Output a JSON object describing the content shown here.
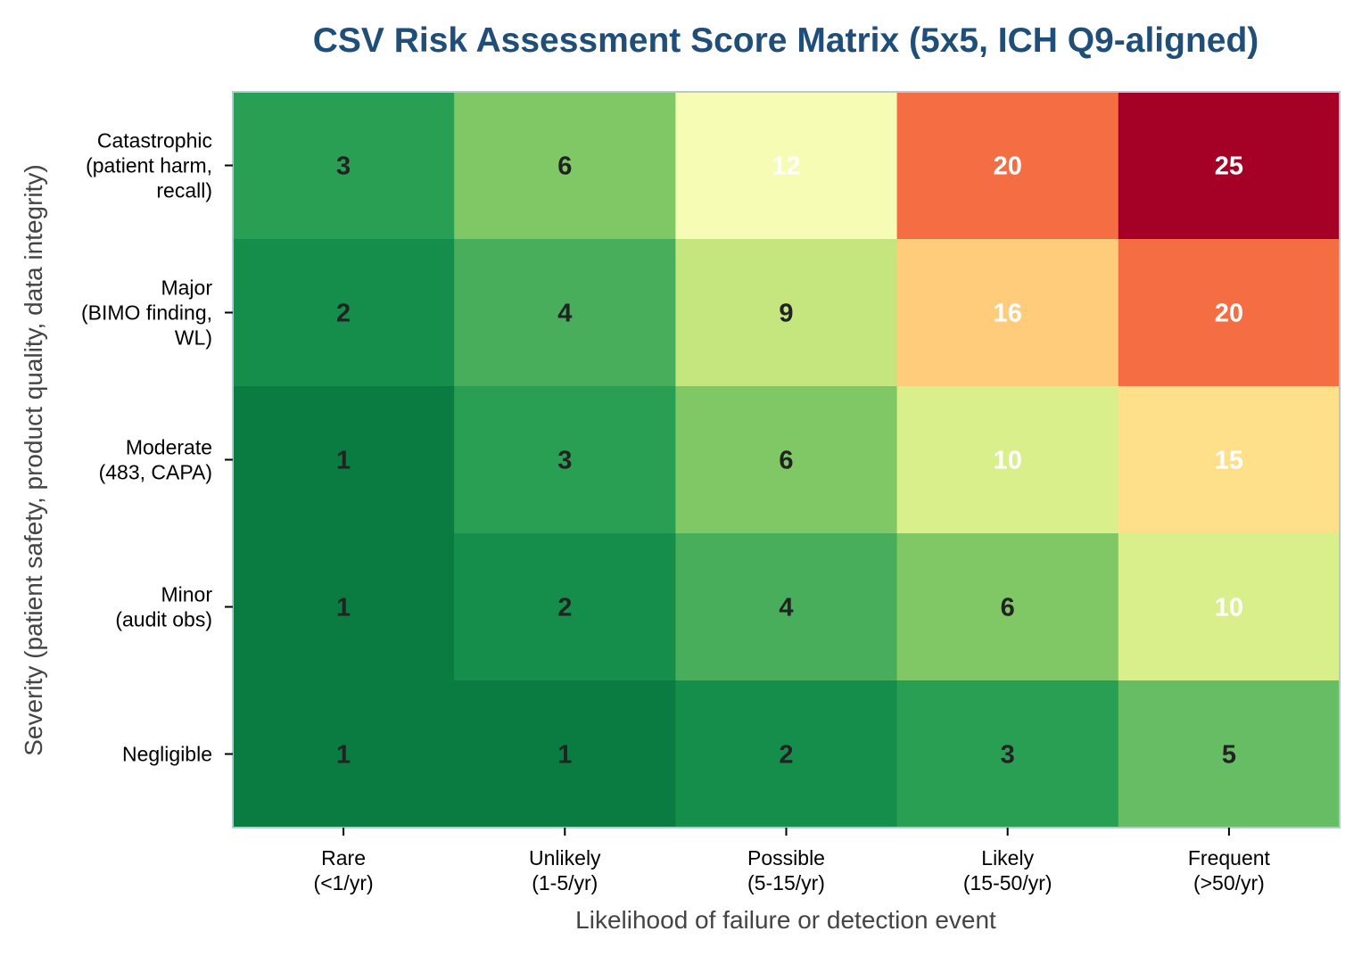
{
  "chart_data": {
    "type": "heatmap",
    "title": "CSV Risk Assessment Score Matrix (5x5, ICH Q9-aligned)",
    "xlabel": "Likelihood of failure or detection event",
    "ylabel": "Severity (patient safety, product quality, data integrity)",
    "x_categories": [
      [
        "Rare",
        "(<1/yr)"
      ],
      [
        "Unlikely",
        "(1-5/yr)"
      ],
      [
        "Possible",
        "(5-15/yr)"
      ],
      [
        "Likely",
        "(15-50/yr)"
      ],
      [
        "Frequent",
        "(>50/yr)"
      ]
    ],
    "y_categories": [
      [
        "Catastrophic",
        "(patient harm,",
        "recall)"
      ],
      [
        "Major",
        "(BIMO finding,",
        "WL)"
      ],
      [
        "Moderate",
        "(483, CAPA)"
      ],
      [
        "Minor",
        "(audit obs)"
      ],
      [
        "Negligible"
      ]
    ],
    "values": [
      [
        3,
        6,
        12,
        20,
        25
      ],
      [
        2,
        4,
        9,
        16,
        20
      ],
      [
        1,
        3,
        6,
        10,
        15
      ],
      [
        1,
        2,
        4,
        6,
        10
      ],
      [
        1,
        1,
        2,
        3,
        5
      ]
    ],
    "colormap": "RdYlGn_r",
    "color_range": [
      0,
      25
    ],
    "colors": {
      "title": "#1f4e79",
      "frame": "#b8c7d6",
      "dark_text": "#222222",
      "light_text": "#ffffff"
    }
  }
}
